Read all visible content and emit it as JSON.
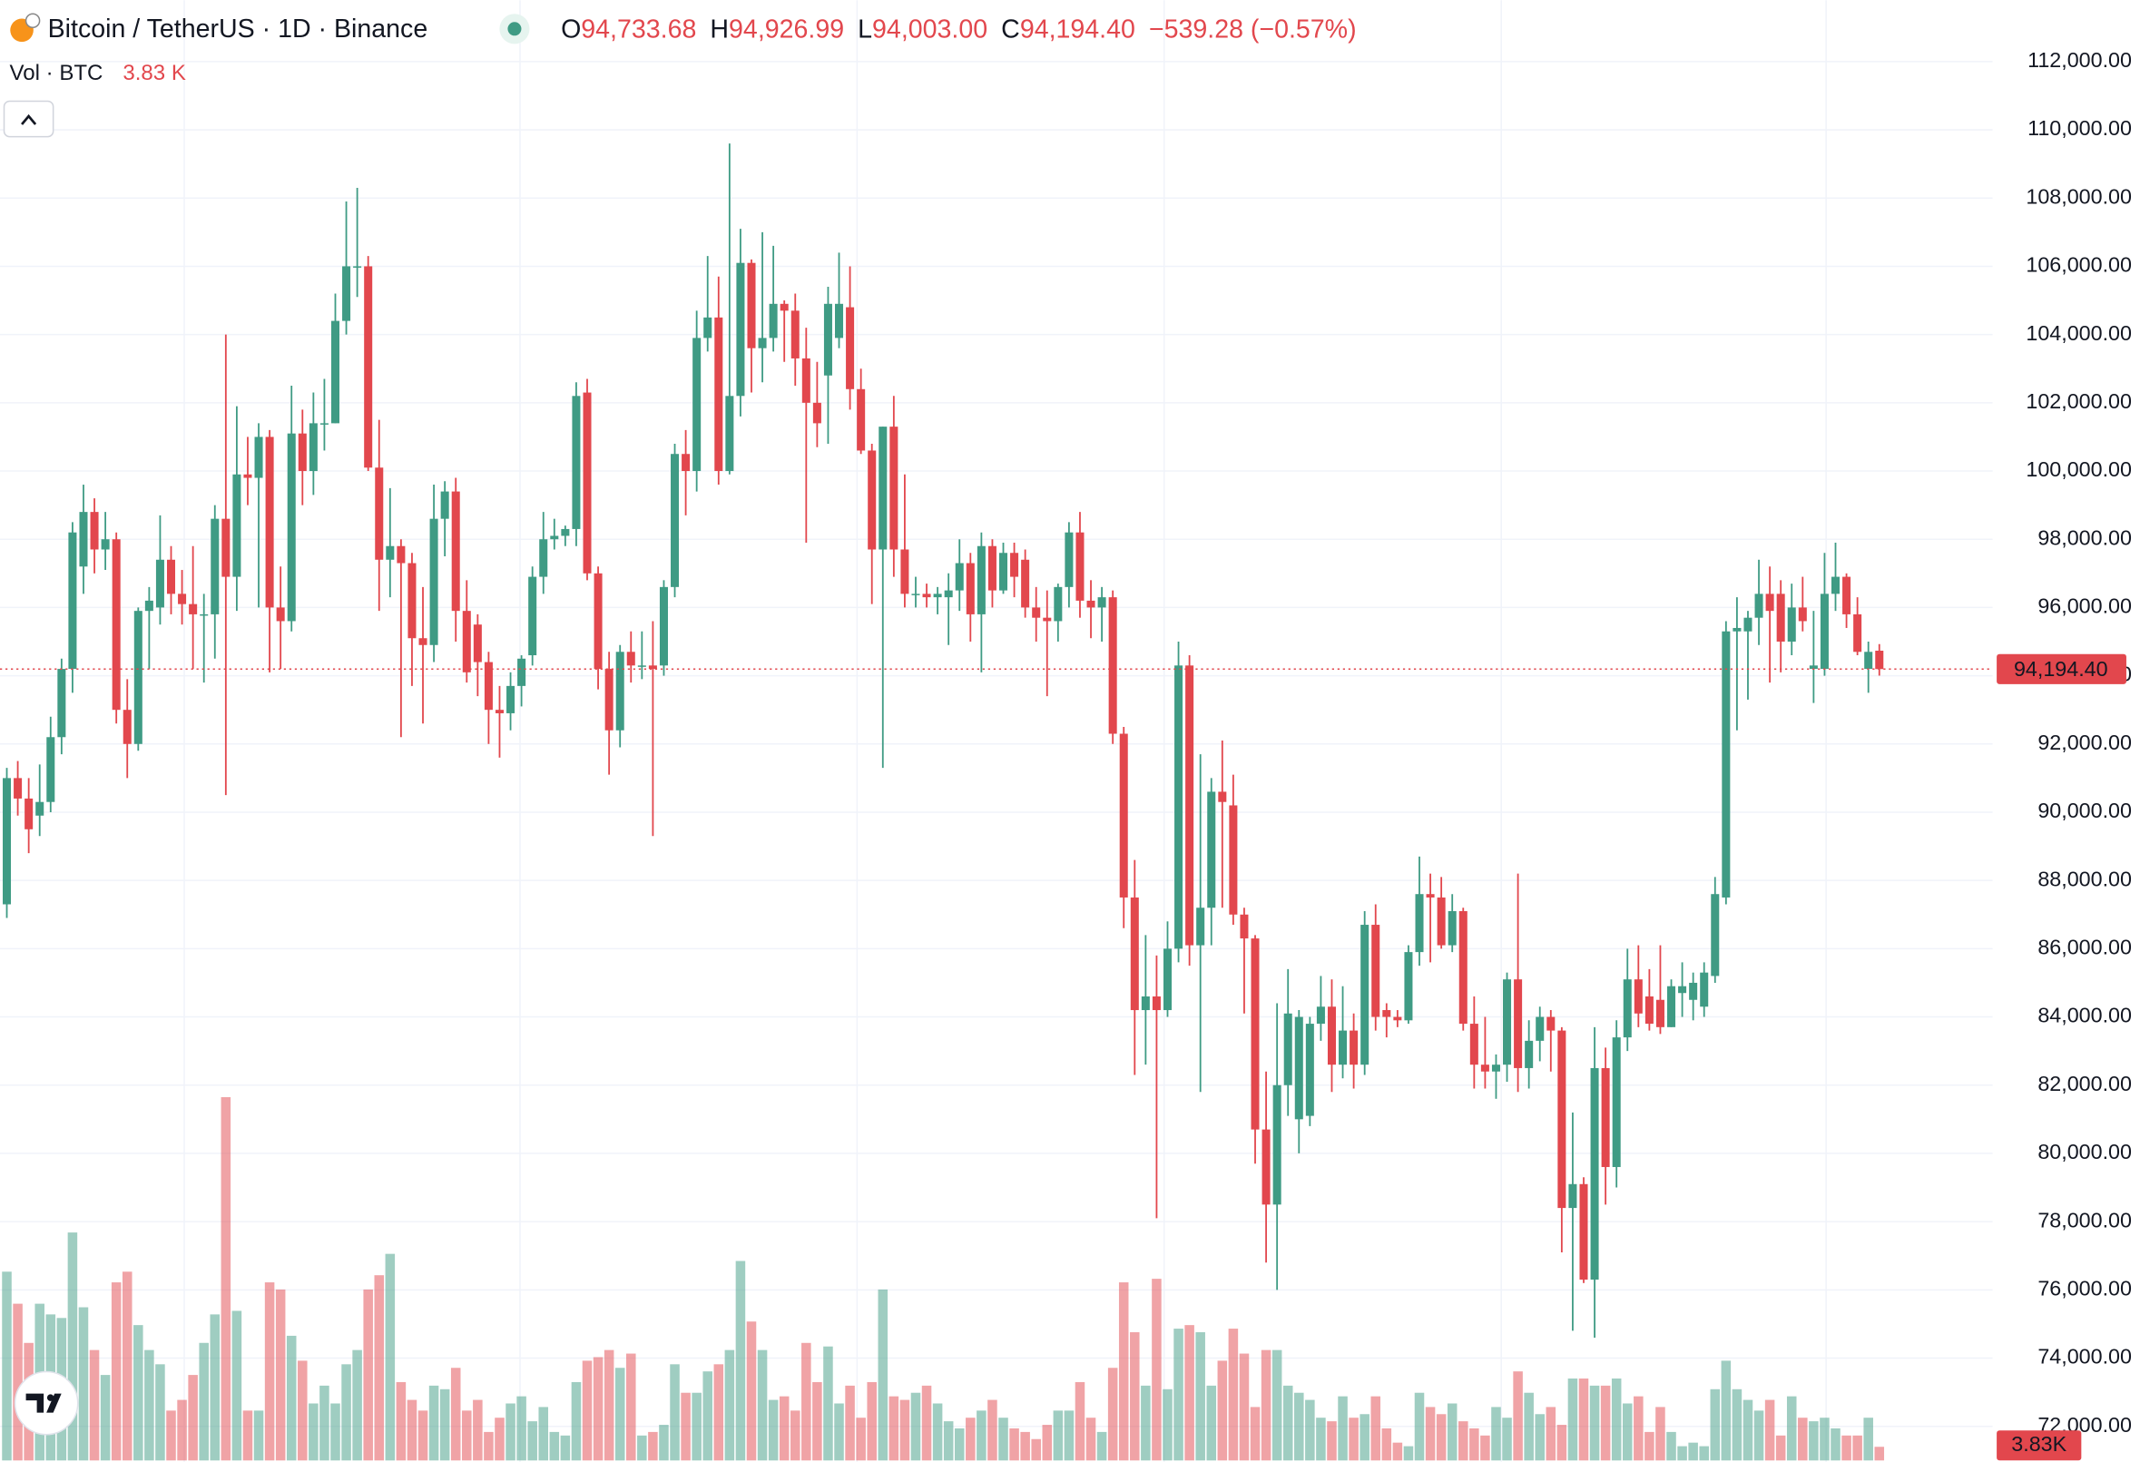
{
  "chart_data": {
    "type": "candlestick",
    "header": {
      "symbol": "Bitcoin / TetherUS · 1D · Binance",
      "ohlc": [
        {
          "label": "O",
          "value": "94,733.68"
        },
        {
          "label": "H",
          "value": "94,926.99"
        },
        {
          "label": "L",
          "value": "94,003.00"
        },
        {
          "label": "C",
          "value": "94,194.40"
        }
      ],
      "change": "−539.28 (−0.57%)"
    },
    "volume_legend": {
      "label": "Vol · BTC",
      "value": "3.83 K"
    },
    "volume_last_label": "3.83K",
    "last_price": {
      "value": 94194.4,
      "label": "94,194.40"
    },
    "up_color": "#3f9b84",
    "down_color": "#e2474d",
    "ylim": [
      71000,
      113800
    ],
    "volume_ylim": [
      0,
      400000
    ],
    "grid": true,
    "yticks": [
      {
        "value": 72000,
        "label": "72,000.00"
      },
      {
        "value": 74000,
        "label": "74,000.00"
      },
      {
        "value": 76000,
        "label": "76,000.00"
      },
      {
        "value": 78000,
        "label": "78,000.00"
      },
      {
        "value": 80000,
        "label": "80,000.00"
      },
      {
        "value": 82000,
        "label": "82,000.00"
      },
      {
        "value": 84000,
        "label": "84,000.00"
      },
      {
        "value": 86000,
        "label": "86,000.00"
      },
      {
        "value": 88000,
        "label": "88,000.00"
      },
      {
        "value": 90000,
        "label": "90,000.00"
      },
      {
        "value": 92000,
        "label": "92,000.00"
      },
      {
        "value": 94000,
        "label": "94,000.00"
      },
      {
        "value": 96000,
        "label": "96,000.00"
      },
      {
        "value": 98000,
        "label": "98,000.00"
      },
      {
        "value": 100000,
        "label": "100,000.00"
      },
      {
        "value": 102000,
        "label": "102,000.00"
      },
      {
        "value": 104000,
        "label": "104,000.00"
      },
      {
        "value": 106000,
        "label": "106,000.00"
      },
      {
        "value": 108000,
        "label": "108,000.00"
      },
      {
        "value": 110000,
        "label": "110,000.00"
      },
      {
        "value": 112000,
        "label": "112,000.00"
      }
    ],
    "candles": [
      [
        87300,
        91300,
        86900,
        91000
      ],
      [
        91000,
        91500,
        89900,
        90400
      ],
      [
        90400,
        91000,
        88800,
        89500
      ],
      [
        89900,
        91400,
        89300,
        90300
      ],
      [
        90300,
        92800,
        90000,
        92200
      ],
      [
        92200,
        94500,
        91700,
        94200
      ],
      [
        94200,
        98500,
        93500,
        98200
      ],
      [
        97200,
        99600,
        96400,
        98800
      ],
      [
        98800,
        99200,
        97000,
        97700
      ],
      [
        97700,
        98800,
        97100,
        98000
      ],
      [
        98000,
        98200,
        92600,
        93000
      ],
      [
        93000,
        93900,
        91000,
        92000
      ],
      [
        92000,
        96000,
        91800,
        95900
      ],
      [
        95900,
        96600,
        94200,
        96200
      ],
      [
        96000,
        98700,
        95500,
        97400
      ],
      [
        97400,
        97800,
        95800,
        96400
      ],
      [
        96400,
        97100,
        95500,
        96100
      ],
      [
        96100,
        97800,
        94200,
        95800
      ],
      [
        95800,
        96400,
        93800,
        95800
      ],
      [
        95800,
        99000,
        94500,
        98600
      ],
      [
        98600,
        104000,
        90500,
        96900
      ],
      [
        96900,
        101900,
        95900,
        99900
      ],
      [
        99900,
        101000,
        99000,
        99800
      ],
      [
        99800,
        101400,
        96000,
        101000
      ],
      [
        101000,
        101200,
        94100,
        96000
      ],
      [
        96000,
        97200,
        94200,
        95600
      ],
      [
        95600,
        102500,
        95300,
        101100
      ],
      [
        101100,
        101800,
        99000,
        100000
      ],
      [
        100000,
        102300,
        99300,
        101400
      ],
      [
        101400,
        102700,
        100600,
        101400
      ],
      [
        101400,
        105200,
        101400,
        104400
      ],
      [
        104400,
        107900,
        104000,
        106000
      ],
      [
        106000,
        108300,
        105100,
        106000
      ],
      [
        106000,
        106300,
        100000,
        100100
      ],
      [
        100100,
        101500,
        95900,
        97400
      ],
      [
        97400,
        99500,
        96300,
        97800
      ],
      [
        97800,
        98000,
        92200,
        97300
      ],
      [
        97300,
        97600,
        93700,
        95100
      ],
      [
        95100,
        96600,
        92600,
        94900
      ],
      [
        94900,
        99600,
        94400,
        98600
      ],
      [
        98600,
        99700,
        97500,
        99400
      ],
      [
        99400,
        99800,
        95000,
        95900
      ],
      [
        95900,
        96800,
        93800,
        94100
      ],
      [
        95500,
        95800,
        93400,
        94400
      ],
      [
        94400,
        94700,
        92000,
        93000
      ],
      [
        93000,
        93700,
        91600,
        92900
      ],
      [
        92900,
        94100,
        92400,
        93700
      ],
      [
        93700,
        94600,
        93100,
        94500
      ],
      [
        94600,
        97200,
        94300,
        96900
      ],
      [
        96900,
        98800,
        96400,
        98000
      ],
      [
        98000,
        98600,
        97700,
        98100
      ],
      [
        98100,
        98400,
        97800,
        98300
      ],
      [
        98300,
        102600,
        97800,
        102200
      ],
      [
        102300,
        102700,
        96800,
        97000
      ],
      [
        97000,
        97200,
        93600,
        94200
      ],
      [
        94200,
        94700,
        91100,
        92400
      ],
      [
        92400,
        94900,
        91900,
        94700
      ],
      [
        94700,
        95300,
        93800,
        94300
      ],
      [
        94300,
        95300,
        93900,
        94300
      ],
      [
        94300,
        95600,
        89300,
        94200
      ],
      [
        94300,
        96800,
        94000,
        96600
      ],
      [
        96600,
        100800,
        96300,
        100500
      ],
      [
        100500,
        101200,
        98700,
        100000
      ],
      [
        100000,
        104700,
        99400,
        103900
      ],
      [
        103900,
        106300,
        103500,
        104500
      ],
      [
        104500,
        105700,
        99600,
        100000
      ],
      [
        100000,
        109600,
        99900,
        102200
      ],
      [
        102200,
        107100,
        101600,
        106100
      ],
      [
        106100,
        106200,
        102300,
        103600
      ],
      [
        103600,
        107000,
        102600,
        103900
      ],
      [
        103900,
        106600,
        103500,
        104900
      ],
      [
        104900,
        105000,
        103200,
        104700
      ],
      [
        104700,
        105200,
        102500,
        103300
      ],
      [
        103300,
        104200,
        97900,
        102000
      ],
      [
        102000,
        103200,
        100700,
        101400
      ],
      [
        102800,
        105400,
        100800,
        104900
      ],
      [
        103900,
        106400,
        103600,
        104900
      ],
      [
        104800,
        106000,
        101800,
        102400
      ],
      [
        102400,
        103000,
        100500,
        100600
      ],
      [
        100600,
        100800,
        96100,
        97700
      ],
      [
        97700,
        101300,
        91300,
        101300
      ],
      [
        101300,
        102200,
        96900,
        97700
      ],
      [
        97700,
        99900,
        96000,
        96400
      ],
      [
        96400,
        96900,
        96000,
        96400
      ],
      [
        96400,
        96700,
        96000,
        96300
      ],
      [
        96300,
        96600,
        95800,
        96400
      ],
      [
        96300,
        97000,
        94900,
        96500
      ],
      [
        96500,
        98000,
        95900,
        97300
      ],
      [
        97300,
        97600,
        95000,
        95800
      ],
      [
        95800,
        98200,
        94100,
        97800
      ],
      [
        97800,
        98000,
        96000,
        96500
      ],
      [
        96500,
        97900,
        96400,
        97600
      ],
      [
        97600,
        97900,
        96300,
        96900
      ],
      [
        97400,
        97700,
        95700,
        96000
      ],
      [
        96000,
        96600,
        95000,
        95700
      ],
      [
        95700,
        96500,
        93400,
        95600
      ],
      [
        95600,
        96700,
        95000,
        96600
      ],
      [
        96600,
        98500,
        96000,
        98200
      ],
      [
        98200,
        98800,
        95700,
        96200
      ],
      [
        96200,
        96800,
        95100,
        96000
      ],
      [
        96000,
        96600,
        95000,
        96300
      ],
      [
        96300,
        96500,
        92000,
        92300
      ],
      [
        92300,
        92500,
        86600,
        87500
      ],
      [
        87500,
        88600,
        82300,
        84200
      ],
      [
        84200,
        86400,
        82600,
        84600
      ],
      [
        84600,
        85800,
        78100,
        84200
      ],
      [
        84200,
        86800,
        84000,
        86000
      ],
      [
        86000,
        95000,
        85600,
        94300
      ],
      [
        94300,
        94600,
        85500,
        86100
      ],
      [
        86100,
        91700,
        81800,
        87200
      ],
      [
        87200,
        91000,
        86100,
        90600
      ],
      [
        90600,
        92100,
        87200,
        90300
      ],
      [
        90200,
        91100,
        86700,
        87000
      ],
      [
        87000,
        87200,
        84100,
        86300
      ],
      [
        86300,
        86400,
        79700,
        80700
      ],
      [
        80700,
        82400,
        76800,
        78500
      ],
      [
        78500,
        84400,
        76000,
        82000
      ],
      [
        82000,
        85400,
        81100,
        84100
      ],
      [
        81000,
        84200,
        80000,
        84000
      ],
      [
        81100,
        84000,
        80800,
        83800
      ],
      [
        83800,
        85200,
        83300,
        84300
      ],
      [
        84300,
        85100,
        81800,
        82600
      ],
      [
        82600,
        84900,
        82200,
        83600
      ],
      [
        83600,
        84100,
        81900,
        82600
      ],
      [
        82600,
        87100,
        82300,
        86700
      ],
      [
        86700,
        87300,
        83600,
        84000
      ],
      [
        84200,
        84400,
        83400,
        84000
      ],
      [
        84000,
        84200,
        83700,
        83900
      ],
      [
        83900,
        86100,
        83800,
        85900
      ],
      [
        85900,
        88700,
        85500,
        87600
      ],
      [
        87600,
        88200,
        85600,
        87500
      ],
      [
        87500,
        88100,
        86000,
        86100
      ],
      [
        86100,
        87600,
        85900,
        87100
      ],
      [
        87100,
        87200,
        83600,
        83800
      ],
      [
        83800,
        84600,
        81900,
        82600
      ],
      [
        82600,
        84000,
        81900,
        82400
      ],
      [
        82400,
        82900,
        81600,
        82600
      ],
      [
        82600,
        85300,
        82100,
        85100
      ],
      [
        85100,
        88200,
        81800,
        82500
      ],
      [
        82500,
        83900,
        81900,
        83300
      ],
      [
        83300,
        84300,
        82700,
        84000
      ],
      [
        84000,
        84200,
        82400,
        83600
      ],
      [
        83600,
        83700,
        77100,
        78400
      ],
      [
        78400,
        81200,
        74800,
        79100
      ],
      [
        79100,
        79300,
        76200,
        76300
      ],
      [
        76300,
        83700,
        74600,
        82500
      ],
      [
        82500,
        83100,
        78500,
        79600
      ],
      [
        79600,
        83900,
        79000,
        83400
      ],
      [
        83400,
        86000,
        83000,
        85100
      ],
      [
        85100,
        86100,
        83700,
        84100
      ],
      [
        84600,
        85400,
        83600,
        83800
      ],
      [
        84500,
        86100,
        83500,
        83700
      ],
      [
        83700,
        85100,
        83700,
        84900
      ],
      [
        84700,
        85600,
        84000,
        84900
      ],
      [
        84500,
        85300,
        83900,
        85000
      ],
      [
        84300,
        85600,
        84000,
        85300
      ],
      [
        85200,
        88100,
        85000,
        87600
      ],
      [
        87500,
        95600,
        87300,
        95300
      ],
      [
        95300,
        96300,
        92400,
        95400
      ],
      [
        95300,
        95900,
        93300,
        95700
      ],
      [
        95700,
        97400,
        94900,
        96400
      ],
      [
        96400,
        97200,
        93800,
        95900
      ],
      [
        96400,
        96800,
        94100,
        95000
      ],
      [
        95000,
        96700,
        94600,
        96000
      ],
      [
        96000,
        96900,
        95300,
        95600
      ],
      [
        94200,
        95900,
        93200,
        94300
      ],
      [
        94200,
        97600,
        94000,
        96400
      ],
      [
        96400,
        97900,
        95900,
        96900
      ],
      [
        96900,
        97000,
        95400,
        95800
      ],
      [
        95800,
        96300,
        94600,
        94700
      ],
      [
        94200,
        95000,
        93500,
        94700
      ],
      [
        94733.68,
        94926.99,
        94003,
        94194.4
      ]
    ],
    "volume": [
      53000,
      44000,
      33000,
      44000,
      41000,
      40000,
      64000,
      43000,
      31000,
      24000,
      50000,
      53000,
      38000,
      31000,
      27000,
      14000,
      17000,
      24000,
      33000,
      41000,
      102000,
      42000,
      14000,
      14000,
      50000,
      48000,
      35000,
      28000,
      16000,
      21000,
      16000,
      27000,
      31000,
      48000,
      52000,
      58000,
      22000,
      17000,
      14000,
      21000,
      20000,
      26000,
      14000,
      17000,
      8000,
      12000,
      16000,
      18000,
      11000,
      15000,
      8000,
      7000,
      22000,
      28000,
      29000,
      31000,
      26000,
      30000,
      7000,
      8000,
      10000,
      27000,
      19000,
      19000,
      25000,
      27000,
      31000,
      56000,
      39000,
      31000,
      17000,
      18000,
      14000,
      33000,
      22000,
      32000,
      16000,
      21000,
      12000,
      22000,
      48000,
      18000,
      17000,
      19000,
      21000,
      16000,
      11000,
      9000,
      12000,
      14000,
      17000,
      12000,
      9000,
      8000,
      6000,
      10000,
      14000,
      14000,
      22000,
      12000,
      8000,
      26000,
      50000,
      36000,
      21000,
      51000,
      20000,
      37000,
      38000,
      36000,
      21000,
      28000,
      37000,
      30000,
      15000,
      31000,
      31000,
      21000,
      19000,
      17000,
      12000,
      11000,
      18000,
      12000,
      13000,
      18000,
      9000,
      5000,
      4000,
      19000,
      15000,
      13000,
      16000,
      11000,
      9000,
      7000,
      15000,
      12000,
      25000,
      19000,
      13000,
      15000,
      10000,
      23000,
      23000,
      21000,
      21000,
      23000,
      16000,
      18000,
      8000,
      15000,
      8000,
      4000,
      5000,
      4000,
      20000,
      28000,
      20000,
      17000,
      14000,
      17000,
      7000,
      18000,
      12000,
      11000,
      12000,
      9000,
      7000,
      7000,
      12000,
      3830
    ]
  }
}
